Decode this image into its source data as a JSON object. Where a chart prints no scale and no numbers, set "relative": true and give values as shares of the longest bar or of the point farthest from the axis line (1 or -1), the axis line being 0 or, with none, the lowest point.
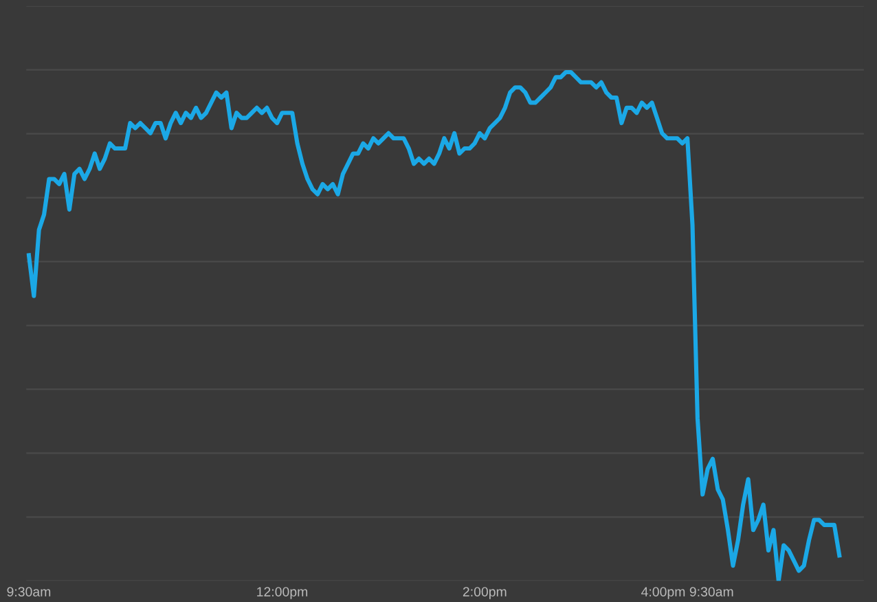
{
  "chart_data": {
    "type": "line",
    "relative": true,
    "grid": "y",
    "marker": "none",
    "line_style": "solid",
    "categories": [
      "9:30am",
      null,
      null,
      null,
      null,
      null,
      null,
      null,
      null,
      null,
      null,
      null,
      null,
      null,
      null,
      null,
      null,
      null,
      null,
      null,
      null,
      null,
      null,
      null,
      null,
      null,
      null,
      null,
      null,
      null,
      null,
      null,
      null,
      null,
      null,
      null,
      null,
      null,
      null,
      null,
      null,
      null,
      null,
      null,
      null,
      null,
      null,
      null,
      null,
      null,
      "12:00pm",
      null,
      null,
      null,
      null,
      null,
      null,
      null,
      null,
      null,
      null,
      null,
      null,
      null,
      null,
      null,
      null,
      null,
      null,
      null,
      null,
      null,
      null,
      null,
      null,
      null,
      null,
      null,
      null,
      null,
      null,
      null,
      null,
      null,
      null,
      null,
      null,
      null,
      null,
      null,
      "2:00pm",
      null,
      null,
      null,
      null,
      null,
      null,
      null,
      null,
      null,
      null,
      null,
      null,
      null,
      null,
      null,
      null,
      null,
      null,
      null,
      null,
      null,
      null,
      null,
      null,
      null,
      null,
      null,
      null,
      null,
      null,
      null,
      null,
      null,
      null,
      null,
      null,
      null,
      null,
      null,
      "4:00pm 9:30am",
      null,
      null,
      null,
      null,
      null,
      null,
      null,
      null,
      null,
      null,
      null,
      null,
      null,
      null,
      null,
      null,
      null,
      null,
      null,
      null,
      null,
      null,
      null,
      null,
      null,
      null,
      null,
      null,
      null,
      null
    ],
    "series": [
      {
        "color": "#1ba8e6",
        "values": [
          0.64,
          0.56,
          0.69,
          0.72,
          0.79,
          0.79,
          0.78,
          0.8,
          0.73,
          0.8,
          0.81,
          0.79,
          0.81,
          0.84,
          0.81,
          0.83,
          0.86,
          0.85,
          0.85,
          0.85,
          0.9,
          0.89,
          0.9,
          0.89,
          0.88,
          0.9,
          0.9,
          0.87,
          0.9,
          0.92,
          0.9,
          0.92,
          0.91,
          0.93,
          0.91,
          0.92,
          0.94,
          0.96,
          0.95,
          0.96,
          0.89,
          0.92,
          0.91,
          0.91,
          0.92,
          0.93,
          0.92,
          0.93,
          0.91,
          0.9,
          0.92,
          0.92,
          0.92,
          0.86,
          0.82,
          0.79,
          0.77,
          0.76,
          0.78,
          0.77,
          0.78,
          0.76,
          0.8,
          0.82,
          0.84,
          0.84,
          0.86,
          0.85,
          0.87,
          0.86,
          0.87,
          0.88,
          0.87,
          0.87,
          0.87,
          0.85,
          0.82,
          0.83,
          0.82,
          0.83,
          0.82,
          0.84,
          0.87,
          0.85,
          0.88,
          0.84,
          0.85,
          0.85,
          0.86,
          0.88,
          0.87,
          0.89,
          0.9,
          0.91,
          0.93,
          0.96,
          0.97,
          0.97,
          0.96,
          0.94,
          0.94,
          0.95,
          0.96,
          0.97,
          0.99,
          0.99,
          1.0,
          1.0,
          0.99,
          0.98,
          0.98,
          0.98,
          0.97,
          0.98,
          0.96,
          0.95,
          0.95,
          0.9,
          0.93,
          0.93,
          0.92,
          0.94,
          0.93,
          0.94,
          0.91,
          0.88,
          0.87,
          0.87,
          0.87,
          0.86,
          0.87,
          0.7,
          0.32,
          0.17,
          0.22,
          0.24,
          0.18,
          0.16,
          0.1,
          0.03,
          0.08,
          0.15,
          0.2,
          0.1,
          0.12,
          0.15,
          0.06,
          0.1,
          0.0,
          0.07,
          0.06,
          0.04,
          0.02,
          0.03,
          0.08,
          0.12,
          0.12,
          0.11,
          0.11,
          0.11,
          0.05
        ]
      }
    ]
  }
}
